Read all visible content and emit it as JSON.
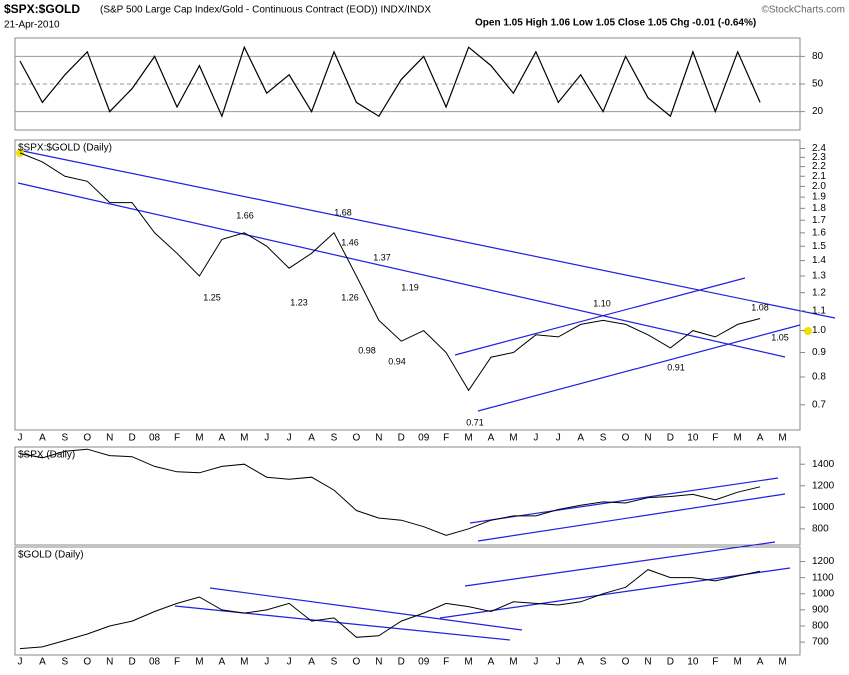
{
  "header": {
    "symbol": "$SPX:$GOLD",
    "description": "(S&P 500 Large Cap Index/Gold - Continuous Contract (EOD)) INDX/INDX",
    "date": "21-Apr-2010",
    "quote": "Open 1.05 High 1.06 Low 1.05 Close 1.05 Chg -0.01 (-0.64%)",
    "credit": "©StockCharts.com"
  },
  "chart_data": [
    {
      "type": "line",
      "color": "#000000",
      "ylim": [
        0,
        100
      ],
      "yticks": [
        20,
        50,
        80
      ],
      "grid": true,
      "values": [
        75,
        30,
        60,
        85,
        20,
        45,
        80,
        25,
        70,
        15,
        90,
        40,
        60,
        20,
        85,
        30,
        15,
        55,
        80,
        25,
        90,
        70,
        40,
        85,
        30,
        60,
        20,
        80,
        35,
        15,
        85,
        20,
        85,
        30,
        null
      ]
    },
    {
      "type": "line",
      "title": "$SPX:$GOLD (Daily)",
      "color": "#000000",
      "log": true,
      "ylim": [
        0.62,
        2.5
      ],
      "yticks": [
        0.7,
        0.8,
        0.9,
        {
          "value": 1,
          "label": "1.0"
        },
        1.1,
        1.2,
        1.3,
        1.4,
        1.5,
        1.6,
        1.7,
        1.8,
        1.9,
        {
          "value": 2,
          "label": "2.0"
        },
        2.1,
        2.2,
        2.3,
        2.4
      ],
      "categories": [
        "J",
        "A",
        "S",
        "O",
        "N",
        "D",
        "08",
        "F",
        "M",
        "A",
        "M",
        "J",
        "J",
        "A",
        "S",
        "O",
        "N",
        "D",
        "09",
        "F",
        "M",
        "A",
        "M",
        "J",
        "J",
        "A",
        "S",
        "O",
        "N",
        "D",
        "10",
        "F",
        "M",
        "A",
        "M"
      ],
      "values": [
        2.35,
        2.25,
        2.1,
        2.05,
        1.85,
        1.85,
        1.6,
        1.45,
        1.3,
        1.55,
        1.6,
        1.5,
        1.35,
        1.45,
        1.6,
        1.3,
        1.05,
        0.95,
        1.0,
        0.9,
        0.75,
        0.88,
        0.9,
        0.98,
        0.97,
        1.03,
        1.05,
        1.03,
        0.98,
        0.92,
        1.0,
        0.97,
        1.03,
        1.06,
        null
      ],
      "annotations": [
        "1.66",
        "1.68",
        "1.46",
        "1.37",
        "1.25",
        "1.23",
        "1.26",
        "1.19",
        "0.98",
        "0.94",
        "0.71",
        "1.10",
        "0.91",
        "1.08",
        "1.05"
      ]
    },
    {
      "type": "line",
      "title": "$SPX (Daily)",
      "color": "#000000",
      "ylim": [
        650,
        1560
      ],
      "yticks": [
        800,
        1000,
        1200,
        1400
      ],
      "values": [
        1500,
        1460,
        1520,
        1540,
        1480,
        1470,
        1380,
        1330,
        1320,
        1380,
        1400,
        1280,
        1260,
        1280,
        1160,
        970,
        900,
        880,
        820,
        740,
        800,
        880,
        920,
        920,
        980,
        1020,
        1050,
        1040,
        1090,
        1100,
        1120,
        1070,
        1140,
        1190,
        null
      ]
    },
    {
      "type": "line",
      "title": "$GOLD (Daily)",
      "color": "#000000",
      "ylim": [
        620,
        1290
      ],
      "yticks": [
        700,
        800,
        900,
        1000,
        1100,
        1200
      ],
      "categories": [
        "J",
        "A",
        "S",
        "O",
        "N",
        "D",
        "08",
        "F",
        "M",
        "A",
        "M",
        "J",
        "J",
        "A",
        "S",
        "O",
        "N",
        "D",
        "09",
        "F",
        "M",
        "A",
        "M",
        "J",
        "J",
        "A",
        "S",
        "O",
        "N",
        "D",
        "10",
        "F",
        "M",
        "A",
        "M"
      ],
      "values": [
        660,
        670,
        710,
        750,
        800,
        830,
        890,
        940,
        980,
        900,
        880,
        900,
        940,
        830,
        850,
        730,
        740,
        830,
        880,
        940,
        920,
        890,
        950,
        940,
        930,
        950,
        1000,
        1040,
        1150,
        1100,
        1100,
        1080,
        1110,
        1140,
        null
      ]
    }
  ]
}
